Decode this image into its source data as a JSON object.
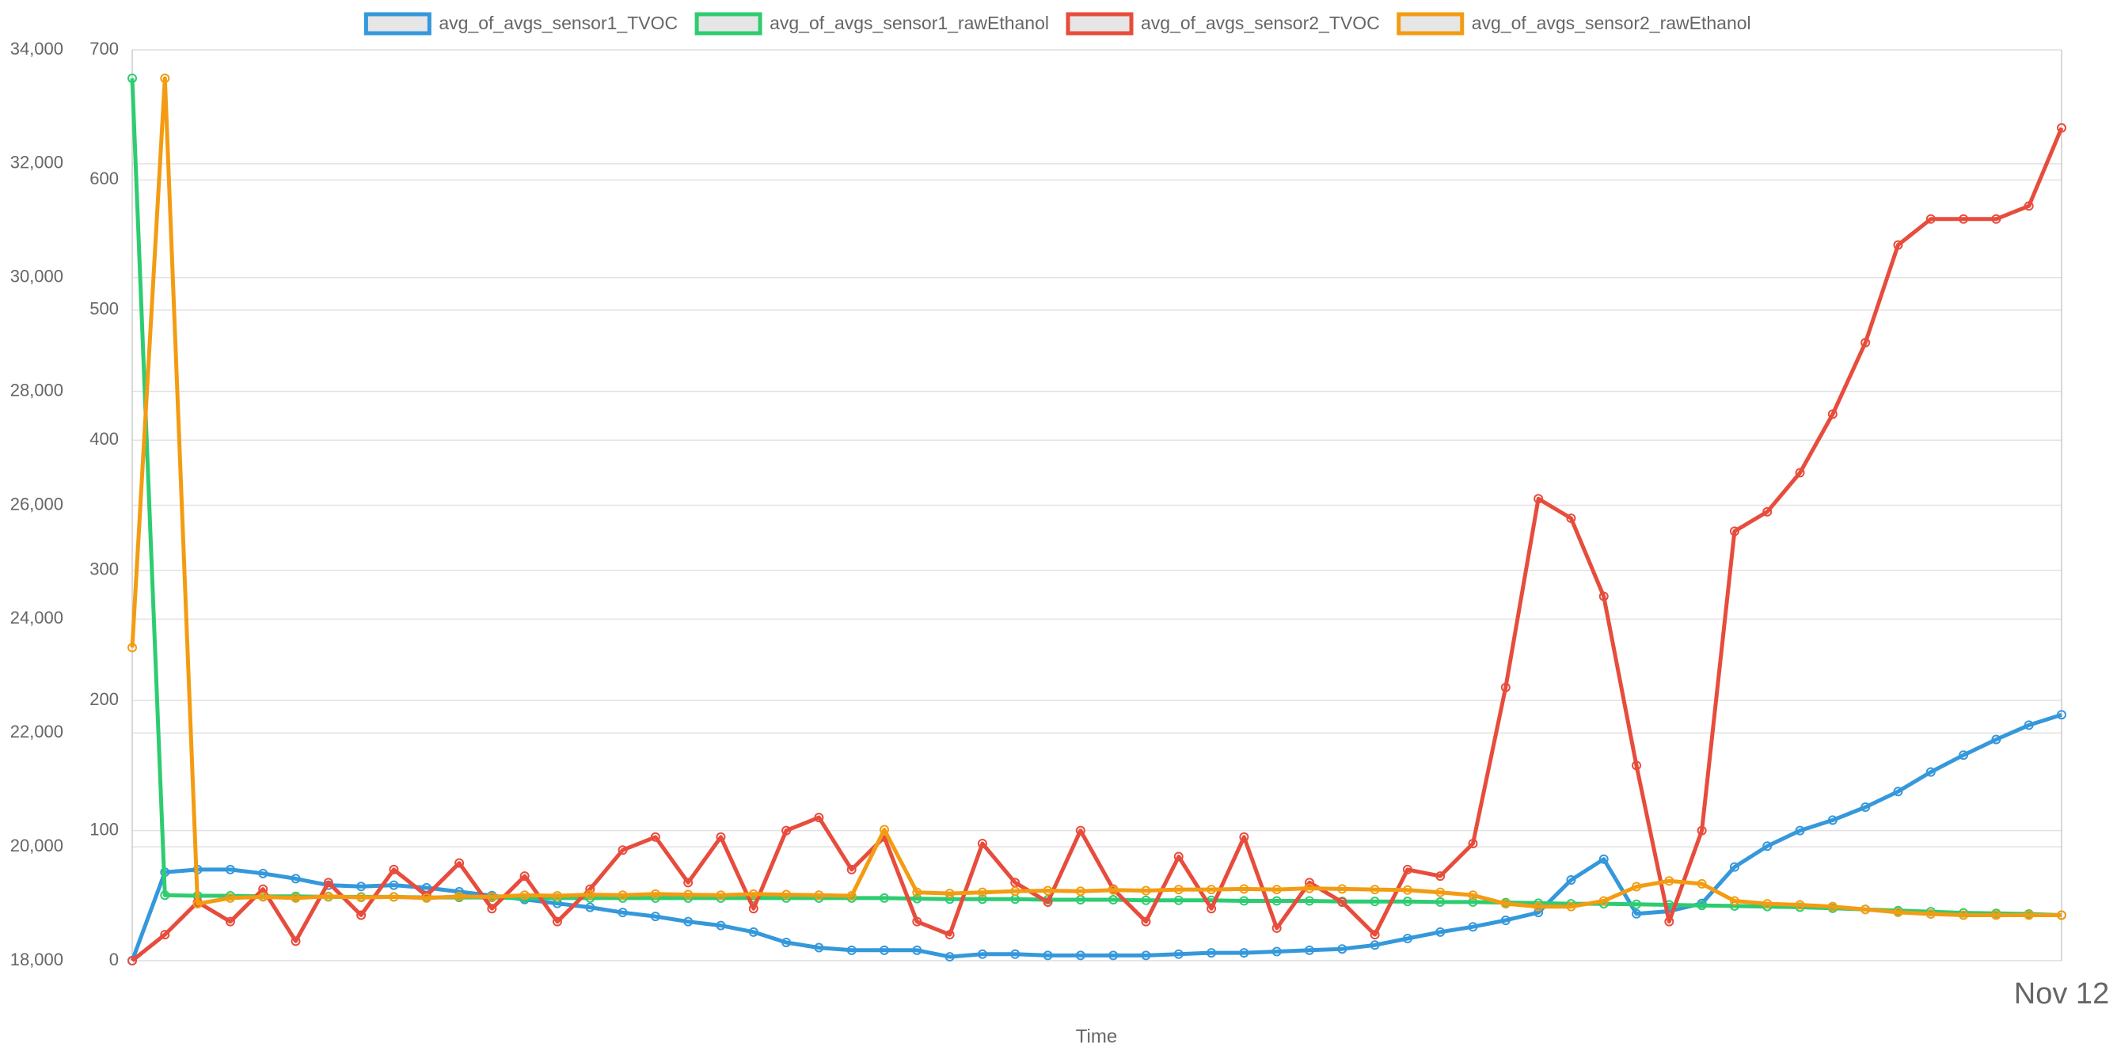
{
  "chart_data": {
    "type": "line",
    "x_label": "Time",
    "legend": "top",
    "grid": true,
    "categories": [
      null,
      null,
      null,
      null,
      null,
      null,
      null,
      null,
      null,
      null,
      null,
      null,
      null,
      null,
      null,
      null,
      null,
      null,
      null,
      null,
      null,
      null,
      null,
      null,
      null,
      null,
      null,
      null,
      null,
      null,
      null,
      null,
      null,
      null,
      null,
      null,
      null,
      null,
      null,
      null,
      null,
      null,
      null,
      null,
      null,
      null,
      null,
      null,
      null,
      null,
      null,
      null,
      null,
      null,
      null,
      null,
      null,
      null,
      null,
      "Nov 12"
    ],
    "ylim": [
      0,
      700
    ],
    "yticks": [
      0,
      100,
      200,
      300,
      400,
      500,
      600,
      700
    ],
    "y2lim": [
      18000,
      34000
    ],
    "y2ticks": [
      {
        "value": 18000,
        "label": "18,000"
      },
      {
        "value": 20000,
        "label": "20,000"
      },
      {
        "value": 22000,
        "label": "22,000"
      },
      {
        "value": 24000,
        "label": "24,000"
      },
      {
        "value": 26000,
        "label": "26,000"
      },
      {
        "value": 28000,
        "label": "28,000"
      },
      {
        "value": 30000,
        "label": "30,000"
      },
      {
        "value": 32000,
        "label": "32,000"
      },
      {
        "value": 34000,
        "label": "34,000"
      }
    ],
    "series": [
      {
        "name": "avg_of_avgs_sensor1_TVOC",
        "color": "#3498db",
        "values": [
          0,
          68,
          70,
          70,
          67,
          63,
          58,
          57,
          58,
          56,
          53,
          50,
          47,
          44,
          41,
          37,
          34,
          30,
          27,
          22,
          14,
          10,
          8,
          8,
          8,
          3,
          5,
          5,
          4,
          4,
          4,
          4,
          5,
          6,
          6,
          7,
          8,
          9,
          12,
          17,
          22,
          26,
          31,
          37,
          62,
          78,
          36,
          38,
          44,
          72,
          88,
          100,
          108,
          118,
          130,
          145,
          158,
          170,
          181,
          189
        ]
      },
      {
        "name": "avg_of_avgs_sensor1_rawEthanol",
        "color": "#2ecc71",
        "axis": "y2",
        "values": [
          33500,
          19150,
          19140,
          19140,
          19130,
          19130,
          19120,
          19120,
          19120,
          19110,
          19110,
          19110,
          19100,
          19100,
          19100,
          19100,
          19100,
          19100,
          19100,
          19100,
          19100,
          19100,
          19100,
          19100,
          19090,
          19080,
          19080,
          19080,
          19070,
          19070,
          19070,
          19060,
          19060,
          19060,
          19050,
          19050,
          19050,
          19040,
          19040,
          19040,
          19030,
          19030,
          19020,
          19010,
          19000,
          19000,
          18990,
          18980,
          18970,
          18960,
          18950,
          18940,
          18920,
          18900,
          18880,
          18860,
          18840,
          18830,
          18820,
          18800
        ]
      },
      {
        "name": "avg_of_avgs_sensor2_TVOC",
        "color": "#e74c3c",
        "values": [
          0,
          20,
          45,
          30,
          55,
          15,
          60,
          35,
          70,
          50,
          75,
          40,
          65,
          30,
          55,
          85,
          95,
          60,
          95,
          40,
          100,
          110,
          70,
          95,
          30,
          20,
          90,
          60,
          45,
          100,
          55,
          30,
          80,
          40,
          95,
          25,
          60,
          45,
          20,
          70,
          65,
          90,
          210,
          355,
          340,
          280,
          150,
          30,
          100,
          330,
          345,
          375,
          420,
          475,
          550,
          570,
          570,
          570,
          580,
          640
        ]
      },
      {
        "name": "avg_of_avgs_sensor2_rawEthanol",
        "color": "#f39c12",
        "axis": "y2",
        "values": [
          23500,
          33500,
          19000,
          19100,
          19120,
          19100,
          19130,
          19110,
          19120,
          19100,
          19130,
          19120,
          19150,
          19140,
          19160,
          19150,
          19170,
          19160,
          19150,
          19170,
          19160,
          19150,
          19140,
          20300,
          19200,
          19180,
          19200,
          19220,
          19230,
          19220,
          19240,
          19230,
          19250,
          19250,
          19260,
          19250,
          19270,
          19260,
          19250,
          19240,
          19200,
          19150,
          19000,
          18950,
          18950,
          19050,
          19300,
          19400,
          19350,
          19050,
          19000,
          18980,
          18950,
          18900,
          18850,
          18820,
          18800,
          18800,
          18800,
          18800
        ]
      }
    ]
  }
}
